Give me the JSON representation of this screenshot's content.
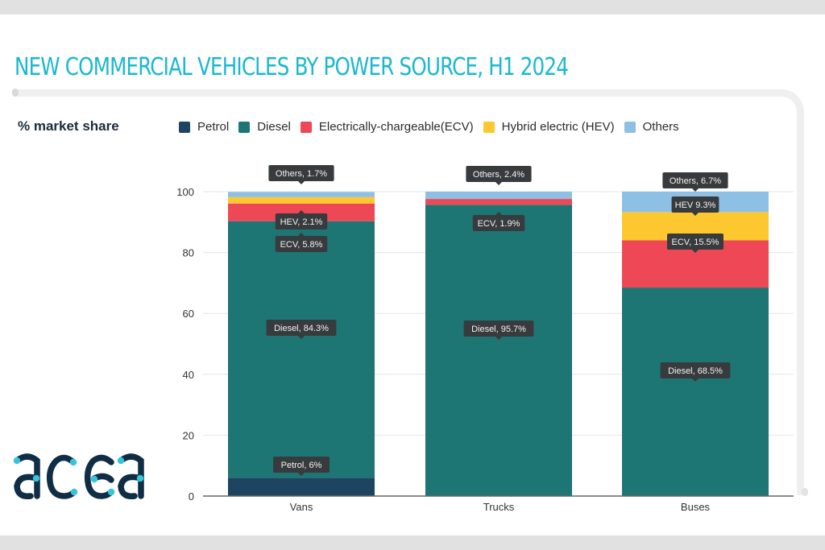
{
  "header": {
    "title": "NEW COMMERCIAL VEHICLES BY POWER SOURCE, H1 2024"
  },
  "logo": {
    "text": "acea",
    "colors": {
      "letters": "#0f2d44",
      "dots": "#35c3dd"
    }
  },
  "chart_data": {
    "type": "bar",
    "stacked": true,
    "title": "NEW COMMERCIAL VEHICLES BY POWER SOURCE, H1 2024",
    "xlabel": "",
    "ylabel": "% market share",
    "ylim": [
      0,
      100
    ],
    "yticks": [
      0,
      20,
      40,
      60,
      80,
      100
    ],
    "grid": true,
    "legend_position": "top",
    "categories": [
      "Vans",
      "Trucks",
      "Buses"
    ],
    "series": [
      {
        "name": "Petrol",
        "color": "#1d4461",
        "values": [
          6,
          0,
          0
        ]
      },
      {
        "name": "Diesel",
        "color": "#1d7574",
        "values": [
          84.3,
          95.7,
          68.5
        ]
      },
      {
        "name": "Electrically-chargeable(ECV)",
        "color": "#ee4755",
        "values": [
          5.8,
          1.9,
          15.5
        ]
      },
      {
        "name": "Hybrid electric (HEV)",
        "color": "#fcc72f",
        "values": [
          2.1,
          0,
          9.3
        ]
      },
      {
        "name": "Others",
        "color": "#8ec0e6",
        "values": [
          1.7,
          2.4,
          6.7
        ]
      }
    ],
    "data_labels": [
      {
        "category": "Vans",
        "series": "Others",
        "text": "Others, 1.7%"
      },
      {
        "category": "Vans",
        "series": "Hybrid electric (HEV)",
        "text": "HEV, 2.1%"
      },
      {
        "category": "Vans",
        "series": "Electrically-chargeable(ECV)",
        "text": "ECV, 5.8%"
      },
      {
        "category": "Vans",
        "series": "Diesel",
        "text": "Diesel, 84.3%"
      },
      {
        "category": "Vans",
        "series": "Petrol",
        "text": "Petrol, 6%"
      },
      {
        "category": "Trucks",
        "series": "Others",
        "text": "Others, 2.4%"
      },
      {
        "category": "Trucks",
        "series": "Electrically-chargeable(ECV)",
        "text": "ECV, 1.9%"
      },
      {
        "category": "Trucks",
        "series": "Diesel",
        "text": "Diesel, 95.7%"
      },
      {
        "category": "Buses",
        "series": "Others",
        "text": "Others, 6.7%"
      },
      {
        "category": "Buses",
        "series": "Hybrid electric (HEV)",
        "text": "HEV 9.3%"
      },
      {
        "category": "Buses",
        "series": "Electrically-chargeable(ECV)",
        "text": "ECV, 15.5%"
      },
      {
        "category": "Buses",
        "series": "Diesel",
        "text": "Diesel, 68.5%"
      }
    ]
  }
}
